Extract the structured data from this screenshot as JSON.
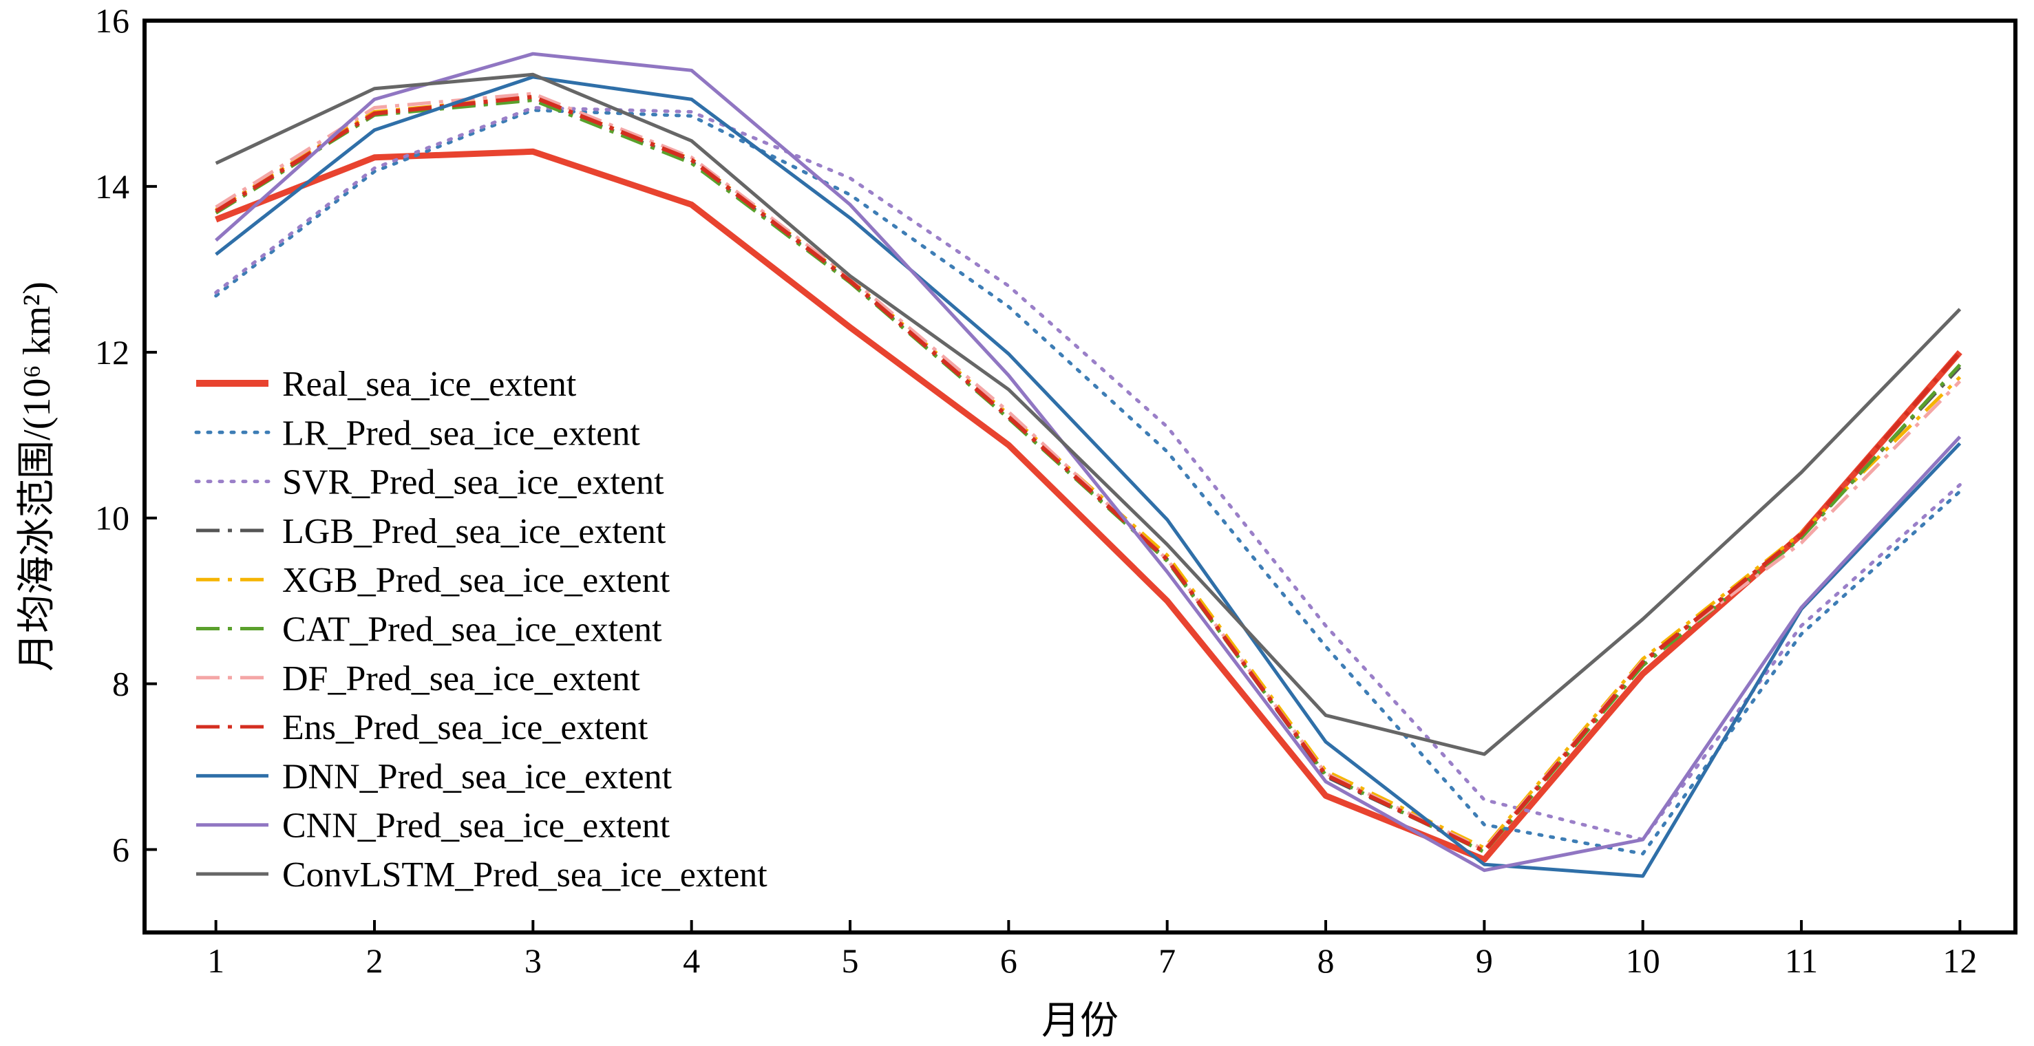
{
  "chart_data": {
    "type": "line",
    "xlabel": "月份",
    "ylabel": "月均海冰范围/(10⁶ km²)",
    "xlim": [
      0.55,
      12.35
    ],
    "ylim": [
      5,
      16
    ],
    "x": [
      1,
      2,
      3,
      4,
      5,
      6,
      7,
      8,
      9,
      10,
      11,
      12
    ],
    "xticks": [
      1,
      2,
      3,
      4,
      5,
      6,
      7,
      8,
      9,
      10,
      11,
      12
    ],
    "yticks": [
      6,
      8,
      10,
      12,
      14,
      16
    ],
    "grid": false,
    "legend_position": "center-left",
    "series": [
      {
        "name": "Real_sea_ice_extent",
        "color": "#e8432f",
        "style": "solid",
        "width": 9,
        "values": [
          13.6,
          14.35,
          14.42,
          13.78,
          12.3,
          10.88,
          9.0,
          6.65,
          5.88,
          8.12,
          9.8,
          12.0
        ]
      },
      {
        "name": "LR_Pred_sea_ice_extent",
        "color": "#3d7db5",
        "style": "dotted",
        "width": 5,
        "values": [
          12.68,
          14.18,
          14.92,
          14.85,
          13.9,
          12.55,
          10.8,
          8.45,
          6.3,
          5.95,
          8.6,
          10.32
        ]
      },
      {
        "name": "SVR_Pred_sea_ice_extent",
        "color": "#9a7fc8",
        "style": "dotted",
        "width": 5,
        "values": [
          12.72,
          14.22,
          14.95,
          14.9,
          14.1,
          12.8,
          11.1,
          8.7,
          6.6,
          6.12,
          8.7,
          10.4
        ]
      },
      {
        "name": "LGB_Pred_sea_ice_extent",
        "color": "#555555",
        "style": "dashdot",
        "width": 5,
        "values": [
          13.7,
          14.88,
          15.05,
          14.3,
          12.85,
          11.2,
          9.5,
          6.88,
          5.98,
          8.25,
          9.78,
          11.82
        ]
      },
      {
        "name": "XGB_Pred_sea_ice_extent",
        "color": "#f5b400",
        "style": "dashdot",
        "width": 5,
        "values": [
          13.72,
          14.9,
          15.08,
          14.33,
          12.88,
          11.25,
          9.55,
          6.95,
          6.02,
          8.3,
          9.82,
          11.7
        ]
      },
      {
        "name": "CAT_Pred_sea_ice_extent",
        "color": "#5aa02c",
        "style": "dashdot",
        "width": 5,
        "values": [
          13.68,
          14.86,
          15.04,
          14.28,
          12.84,
          11.2,
          9.48,
          6.9,
          5.97,
          8.22,
          9.76,
          11.85
        ]
      },
      {
        "name": "DF_Pred_sea_ice_extent",
        "color": "#f4a6a6",
        "style": "dashdot",
        "width": 5,
        "values": [
          13.75,
          14.95,
          15.12,
          14.35,
          12.9,
          11.28,
          9.5,
          6.92,
          6.0,
          8.28,
          9.7,
          11.65
        ]
      },
      {
        "name": "Ens_Pred_sea_ice_extent",
        "color": "#d42e20",
        "style": "dashdot",
        "width": 6,
        "values": [
          13.7,
          14.88,
          15.08,
          14.32,
          12.86,
          11.22,
          9.5,
          6.9,
          5.98,
          8.26,
          9.8,
          12.0
        ]
      },
      {
        "name": "DNN_Pred_sea_ice_extent",
        "color": "#2f6fa8",
        "style": "solid",
        "width": 5,
        "values": [
          13.18,
          14.68,
          15.32,
          15.05,
          13.62,
          11.98,
          9.98,
          7.3,
          5.82,
          5.68,
          8.9,
          10.9
        ]
      },
      {
        "name": "CNN_Pred_sea_ice_extent",
        "color": "#9076c2",
        "style": "solid",
        "width": 5,
        "values": [
          13.35,
          15.05,
          15.6,
          15.4,
          13.78,
          11.72,
          9.35,
          6.82,
          5.75,
          6.12,
          8.92,
          10.98
        ]
      },
      {
        "name": "ConvLSTM_Pred_sea_ice_extent",
        "color": "#666666",
        "style": "solid",
        "width": 5,
        "values": [
          14.28,
          15.18,
          15.35,
          14.55,
          12.92,
          11.55,
          9.68,
          7.62,
          7.15,
          8.78,
          10.55,
          12.52
        ]
      }
    ]
  }
}
